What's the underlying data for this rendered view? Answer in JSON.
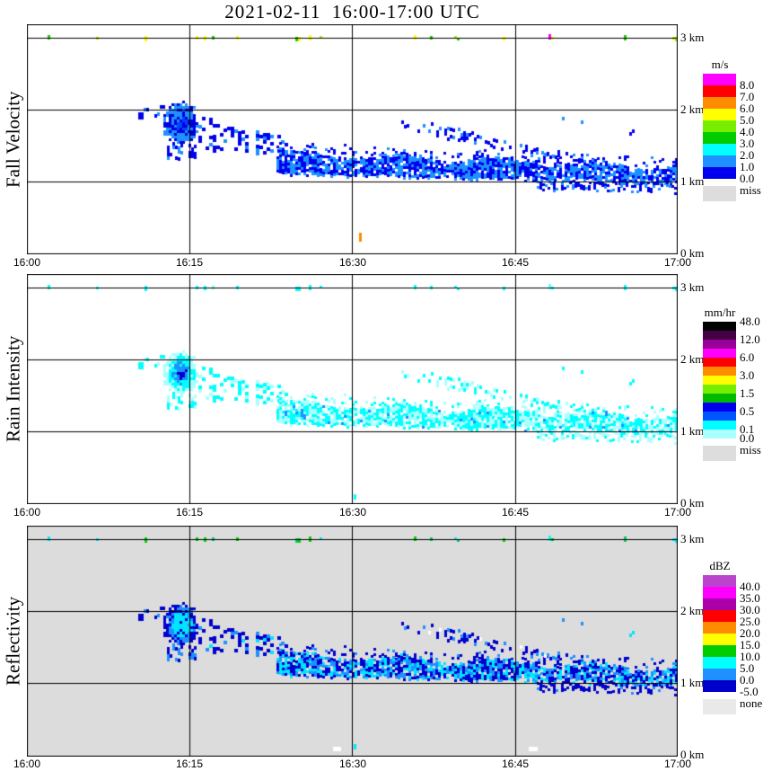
{
  "title": "2021-02-11  16:00-17:00 UTC",
  "x_axis": {
    "ticks": [
      "16:00",
      "16:15",
      "16:30",
      "16:45",
      "17:00"
    ]
  },
  "y_axis": {
    "labels": [
      "3 km",
      "2 km",
      "1 km",
      "0 km"
    ]
  },
  "panels": [
    {
      "id": "fall-velocity",
      "ylabel": "Fall Velocity",
      "bg": "#FFFFFF",
      "legend": {
        "title": "m/s",
        "block_h": 13,
        "blocks": [
          "#FF00FF",
          "#FF0000",
          "#FF8C00",
          "#FFFF00",
          "#77EE00",
          "#00CC00",
          "#00FFFF",
          "#1E90FF",
          "#0000EE"
        ],
        "labels": [
          {
            "text": "8.0",
            "b": 1
          },
          {
            "text": "7.0",
            "b": 2
          },
          {
            "text": "6.0",
            "b": 3
          },
          {
            "text": "5.0",
            "b": 4
          },
          {
            "text": "4.0",
            "b": 5
          },
          {
            "text": "3.0",
            "b": 6
          },
          {
            "text": "2.0",
            "b": 7
          },
          {
            "text": "1.0",
            "b": 8
          },
          {
            "text": "0.0",
            "b": 9
          }
        ],
        "missing": {
          "color": "#DDDDDD",
          "label": "miss"
        }
      }
    },
    {
      "id": "rain-intensity",
      "ylabel": "Rain Intensity",
      "bg": "#FFFFFF",
      "legend": {
        "title": "mm/hr",
        "block_h": 10,
        "blocks": [
          "#000000",
          "#440044",
          "#990099",
          "#FF00FF",
          "#FF0000",
          "#FF8C00",
          "#FFFF00",
          "#77EE00",
          "#00BB00",
          "#0000EE",
          "#0055FF",
          "#00FFFF",
          "#AAFFFF"
        ],
        "labels": [
          {
            "text": "48.0",
            "b": 0
          },
          {
            "text": "12.0",
            "b": 2
          },
          {
            "text": "6.0",
            "b": 4
          },
          {
            "text": "3.0",
            "b": 6
          },
          {
            "text": "1.5",
            "b": 8
          },
          {
            "text": "0.5",
            "b": 10
          },
          {
            "text": "0.1",
            "b": 12
          },
          {
            "text": "0.0",
            "b": 13
          }
        ],
        "missing": {
          "color": "#DDDDDD",
          "label": "miss"
        }
      }
    },
    {
      "id": "reflectivity",
      "ylabel": "Reflectivity",
      "bg": "#DCDCDC",
      "legend": {
        "title": "dBZ",
        "block_h": 13,
        "blocks": [
          "#BB44CC",
          "#FF00FF",
          "#AA00AA",
          "#FF0000",
          "#FF8C00",
          "#FFFF00",
          "#00CC00",
          "#00FFFF",
          "#1E90FF",
          "#0000CD"
        ],
        "labels": [
          {
            "text": "40.0",
            "b": 1
          },
          {
            "text": "35.0",
            "b": 2
          },
          {
            "text": "30.0",
            "b": 3
          },
          {
            "text": "25.0",
            "b": 4
          },
          {
            "text": "20.0",
            "b": 5
          },
          {
            "text": "15.0",
            "b": 6
          },
          {
            "text": "10.0",
            "b": 7
          },
          {
            "text": "5.0",
            "b": 8
          },
          {
            "text": "0.0",
            "b": 9
          },
          {
            "text": "-5.0",
            "b": 10
          }
        ],
        "missing": {
          "color": "#E9E9E9",
          "label": "none"
        }
      }
    }
  ],
  "chart_data": {
    "type": "heatmap",
    "title": "2021-02-11 16:00-17:00 UTC",
    "x": {
      "unit": "time UTC",
      "range": [
        "16:00",
        "17:00"
      ],
      "gridlines": [
        "16:15",
        "16:30",
        "16:45"
      ]
    },
    "y": {
      "unit": "height (km)",
      "range": [
        0,
        3.2
      ],
      "gridlines_km": [
        1,
        2,
        3
      ]
    },
    "panels": [
      {
        "name": "Fall Velocity",
        "unit": "m/s",
        "scale_ticks": [
          8.0,
          7.0,
          6.0,
          5.0,
          4.0,
          3.0,
          2.0,
          1.0,
          0.0
        ],
        "missing_label": "miss"
      },
      {
        "name": "Rain Intensity",
        "unit": "mm/hr",
        "scale_ticks": [
          48.0,
          12.0,
          6.0,
          3.0,
          1.5,
          0.5,
          0.1,
          0.0
        ],
        "missing_label": "miss"
      },
      {
        "name": "Reflectivity",
        "unit": "dBZ",
        "scale_ticks": [
          40.0,
          35.0,
          30.0,
          25.0,
          20.0,
          15.0,
          10.0,
          5.0,
          0.0,
          -5.0
        ],
        "missing_label": "none"
      }
    ],
    "echo_features": {
      "description": "Shallow precipitation echo: noisy instrument layer pinned at 3 km in all panels; dense cell at 16:13-16:15 around 1.5-2.1 km; scattered echo descending 16:15-16:23; quasi-continuous band from 16:23 to 17:00 sinking from ~1.4 km to ~1.0 km; weak elevated streak 16:35-16:50 from ~1.85 km merging into the band; sub-1-km specks after 16:47.",
      "top_layer": {
        "t0": 0,
        "t1": 60,
        "h_km": 3.0,
        "density": 0.13
      },
      "blob": {
        "cx_min": 14.1,
        "cy_km": 1.83,
        "rx_min": 1.55,
        "ry_km": 0.3,
        "noise": 0.35
      },
      "bands": [
        {
          "id": "pre_dots",
          "t0": 10.3,
          "t1": 12.7,
          "top0": 2.02,
          "top1": 2.06,
          "bot0": 1.9,
          "bot1": 1.94,
          "density": 0.28,
          "cw": 3,
          "chp": 4,
          "jit": 0.02
        },
        {
          "id": "cluster_tail",
          "t0": 12.9,
          "t1": 15.9,
          "top0": 1.56,
          "top1": 1.5,
          "bot0": 1.28,
          "bot1": 1.34,
          "density": 0.3,
          "cw": 3,
          "chp": 4,
          "jit": 0.05
        },
        {
          "id": "mid_scatter",
          "t0": 15.8,
          "t1": 23.8,
          "top0": 1.88,
          "top1": 1.6,
          "bot0": 1.52,
          "bot1": 1.38,
          "density": 0.3,
          "cw": 4,
          "chp": 4,
          "jit": 0.1
        },
        {
          "id": "fringe",
          "t0": 23.0,
          "t1": 60.0,
          "top0": 1.52,
          "top1": 1.3,
          "bot0": 1.4,
          "bot1": 1.18,
          "density": 0.22,
          "cw": 3,
          "chp": 3,
          "jit": 0.08
        },
        {
          "id": "main_band",
          "t0": 23.0,
          "t1": 60.0,
          "top0": 1.4,
          "top1": 1.2,
          "bot0": 1.12,
          "bot1": 0.98,
          "density": 0.85,
          "cw": 3,
          "chp": 3,
          "jit": 0.05,
          "wiggle": [
            0.05,
            9
          ]
        },
        {
          "id": "elev_streak",
          "t0": 34.5,
          "t1": 50.0,
          "top0": 1.88,
          "top1": 1.42,
          "bot0": 1.74,
          "bot1": 1.3,
          "density": 0.26,
          "cw": 3,
          "chp": 4,
          "jit": 0.06
        },
        {
          "id": "low_tail",
          "t0": 47.0,
          "t1": 60.0,
          "top0": 1.0,
          "top1": 0.99,
          "bot0": 0.9,
          "bot1": 0.86,
          "density": 0.4,
          "cw": 3,
          "chp": 3,
          "jit": 0.03
        },
        {
          "id": "iso_dots",
          "t0": 49.3,
          "t1": 56.0,
          "top0": 1.88,
          "top1": 1.8,
          "bot0": 1.7,
          "bot1": 1.62,
          "density": 0.06,
          "cw": 3,
          "chp": 4,
          "jit": 0.05
        }
      ]
    },
    "panel_palettes": [
      {
        "panel": "fall-velocity",
        "top_layer": [
          [
            "#FFFF00",
            0.45
          ],
          [
            "#AAEE00",
            0.28
          ],
          [
            "#22CC00",
            0.17
          ],
          [
            "#1E90FF",
            0.04
          ],
          [
            "#0000CC",
            0.03
          ],
          [
            "#FF00FF",
            0.02
          ],
          [
            "#111111",
            0.01
          ]
        ],
        "blob_rings": [
          [
            0.3,
            "#0044FF"
          ],
          [
            1.0,
            "#1E90FF"
          ]
        ],
        "blob_speck": [
          "#0000DD",
          0.35
        ],
        "bands": {
          "pre_dots": [
            [
              "#0000EE",
              0.6
            ],
            [
              "#1E90FF",
              0.4
            ]
          ],
          "cluster_tail": [
            [
              "#0000EE",
              0.75
            ],
            [
              "#1E90FF",
              0.25
            ]
          ],
          "mid_scatter": [
            [
              "#0000EE",
              0.62
            ],
            [
              "#1E90FF",
              0.38
            ]
          ],
          "fringe": [
            [
              "#0000EE",
              0.8
            ],
            [
              "#1E90FF",
              0.2
            ]
          ],
          "main_band": [
            [
              "#1E90FF",
              0.52
            ],
            [
              "#0000EE",
              0.48
            ]
          ],
          "elev_streak": [
            [
              "#0000EE",
              0.75
            ],
            [
              "#1E90FF",
              0.25
            ]
          ],
          "low_tail": [
            [
              "#0000EE",
              0.7
            ],
            [
              "#1E90FF",
              0.3
            ]
          ],
          "iso_dots": [
            [
              "#0000EE",
              0.6
            ],
            [
              "#1E90FF",
              0.4
            ]
          ]
        },
        "artifacts": [
          {
            "t": 30.6,
            "h": 0.16,
            "w": 3,
            "ph": 10,
            "c": "#FF8C00"
          }
        ]
      },
      {
        "panel": "rain-intensity",
        "top_layer": [
          [
            "#00FFFF",
            0.85
          ],
          [
            "#66FFFF",
            0.15
          ]
        ],
        "blob_rings": [
          [
            0.18,
            "#0000CD"
          ],
          [
            0.42,
            "#1E90FF"
          ],
          [
            0.75,
            "#00FFFF"
          ],
          [
            1.0,
            "#AAFFFF"
          ]
        ],
        "blob_speck": null,
        "bands": {
          "pre_dots": [
            [
              "#00FFFF",
              0.7
            ],
            [
              "#AAFFFF",
              0.3
            ]
          ],
          "cluster_tail": [
            [
              "#AAFFFF",
              0.6
            ],
            [
              "#00FFFF",
              0.4
            ]
          ],
          "mid_scatter": [
            [
              "#00FFFF",
              0.5
            ],
            [
              "#AAFFFF",
              0.5
            ]
          ],
          "fringe": [
            [
              "#AAFFFF",
              0.6
            ],
            [
              "#00FFFF",
              0.4
            ]
          ],
          "main_band": [
            [
              "#00FFFF",
              0.52
            ],
            [
              "#AAFFFF",
              0.44
            ],
            [
              "#1E90FF",
              0.04
            ]
          ],
          "elev_streak": [
            [
              "#AAFFFF",
              0.55
            ],
            [
              "#00FFFF",
              0.45
            ]
          ],
          "low_tail": [
            [
              "#AAFFFF",
              0.7
            ],
            [
              "#00FFFF",
              0.3
            ]
          ],
          "iso_dots": [
            [
              "#00FFFF",
              0.8
            ],
            [
              "#AAFFFF",
              0.2
            ]
          ]
        },
        "artifacts": [
          {
            "t": 30.1,
            "h": 0.05,
            "w": 3,
            "ph": 6,
            "c": "#00FFFF"
          }
        ]
      },
      {
        "panel": "reflectivity",
        "top_layer": [
          [
            "#00CC00",
            0.5
          ],
          [
            "#00E5FF",
            0.25
          ],
          [
            "#00CC66",
            0.15
          ],
          [
            "#00FFFF",
            0.1
          ]
        ],
        "blob_rings": [
          [
            0.55,
            "#00E5FF"
          ],
          [
            0.8,
            "#1E90FF"
          ],
          [
            1.0,
            "#0000CD"
          ]
        ],
        "blob_speck": [
          "#0000CD",
          0.12
        ],
        "bands": {
          "pre_dots": [
            [
              "#0000CD",
              0.6
            ],
            [
              "#1E90FF",
              0.4
            ]
          ],
          "cluster_tail": [
            [
              "#0000CD",
              0.6
            ],
            [
              "#1E90FF",
              0.4
            ]
          ],
          "mid_scatter": [
            [
              "#0000CD",
              0.55
            ],
            [
              "#1E90FF",
              0.3
            ],
            [
              "#00E5FF",
              0.15
            ]
          ],
          "fringe": [
            [
              "#0000CD",
              0.75
            ],
            [
              "#1E90FF",
              0.25
            ]
          ],
          "main_band": [
            [
              "#0000CD",
              0.4
            ],
            [
              "#1E90FF",
              0.3
            ],
            [
              "#00E5FF",
              0.3
            ]
          ],
          "elev_streak": [
            [
              "#0000CD",
              0.65
            ],
            [
              "#1E90FF",
              0.25
            ],
            [
              "#FFFFFF",
              0.1
            ]
          ],
          "low_tail": [
            [
              "#0000CD",
              0.8
            ],
            [
              "#1E90FF",
              0.2
            ]
          ],
          "iso_dots": [
            [
              "#00E5FF",
              0.5
            ],
            [
              "#1E90FF",
              0.5
            ]
          ]
        },
        "artifacts": [
          {
            "t": 28.2,
            "h": 0.05,
            "w": 9,
            "ph": 5,
            "c": "#FFFFFF"
          },
          {
            "t": 46.3,
            "h": 0.05,
            "w": 10,
            "ph": 5,
            "c": "#FFFFFF"
          },
          {
            "t": 30.1,
            "h": 0.08,
            "w": 3,
            "ph": 6,
            "c": "#00E5FF"
          }
        ]
      }
    ]
  }
}
